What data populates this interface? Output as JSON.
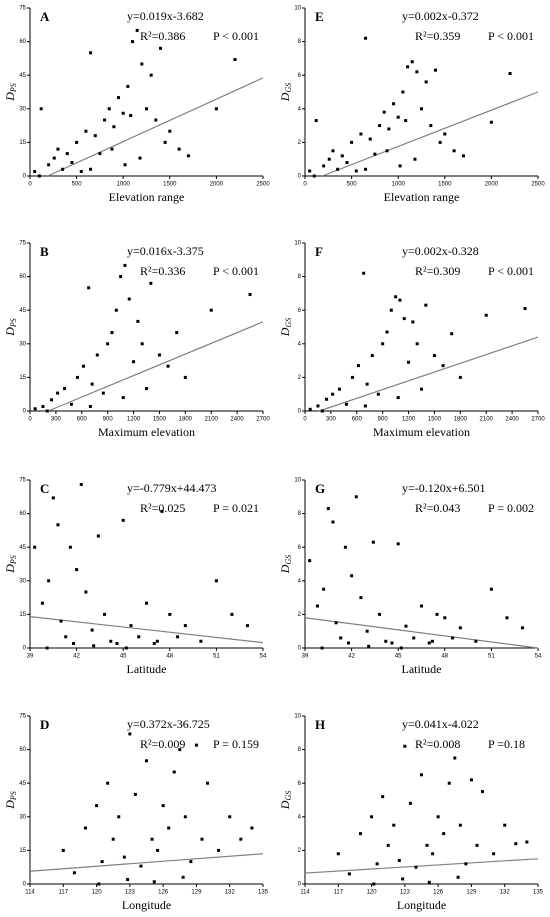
{
  "chart_data": [
    {
      "type": "scatter",
      "panel_label": "A",
      "equation": "y=0.019x-3.682",
      "r_squared": "R²=0.386",
      "p_value": "P < 0.001",
      "xlabel": "Elevation range",
      "ylabel": "D",
      "ylabel_sub": "PS",
      "color": "#000000",
      "trend_color": "#808080",
      "xlim": [
        0,
        2500
      ],
      "ylim": [
        0,
        75
      ],
      "xticks": [
        0,
        500,
        1000,
        1500,
        2000,
        2500
      ],
      "yticks": [
        0,
        15,
        30,
        45,
        60,
        75
      ],
      "x": [
        50,
        120,
        200,
        260,
        300,
        350,
        400,
        450,
        500,
        550,
        600,
        650,
        700,
        750,
        800,
        850,
        900,
        950,
        1000,
        1050,
        1100,
        1150,
        1200,
        1250,
        1300,
        1350,
        1400,
        1450,
        1500,
        1600,
        1700,
        2000,
        2200,
        100,
        650,
        880,
        1020,
        1080,
        1180
      ],
      "y": [
        2,
        30,
        5,
        8,
        12,
        3,
        10,
        6,
        15,
        2,
        20,
        55,
        18,
        10,
        25,
        30,
        22,
        35,
        28,
        40,
        60,
        65,
        50,
        30,
        45,
        25,
        57,
        15,
        20,
        12,
        9,
        30,
        52,
        0,
        3,
        12,
        5,
        27,
        8
      ],
      "trend": {
        "x": [
          190,
          2500
        ],
        "y": [
          0,
          43.8
        ]
      }
    },
    {
      "type": "scatter",
      "panel_label": "B",
      "equation": "y=0.016x-3.375",
      "r_squared": "R²=0.336",
      "p_value": "P < 0.001",
      "xlabel": "Maximum elevation",
      "ylabel": "D",
      "ylabel_sub": "PS",
      "color": "#000000",
      "trend_color": "#808080",
      "xlim": [
        0,
        2700
      ],
      "ylim": [
        0,
        75
      ],
      "xticks": [
        0,
        300,
        600,
        900,
        1200,
        1500,
        1800,
        2100,
        2400,
        2700
      ],
      "yticks": [
        0,
        15,
        30,
        45,
        60,
        75
      ],
      "x": [
        60,
        150,
        250,
        320,
        400,
        480,
        550,
        620,
        680,
        720,
        780,
        850,
        900,
        950,
        1000,
        1050,
        1100,
        1150,
        1200,
        1250,
        1300,
        1400,
        1500,
        1600,
        1700,
        1800,
        2100,
        2550,
        200,
        700,
        1080,
        1350
      ],
      "y": [
        1,
        2,
        5,
        8,
        10,
        3,
        15,
        20,
        55,
        12,
        25,
        8,
        30,
        35,
        45,
        60,
        65,
        50,
        22,
        40,
        30,
        57,
        25,
        20,
        35,
        15,
        45,
        52,
        0,
        2,
        6,
        10
      ],
      "trend": {
        "x": [
          211,
          2700
        ],
        "y": [
          0,
          39.8
        ]
      }
    },
    {
      "type": "scatter",
      "panel_label": "C",
      "equation": "y=-0.779x+44.473",
      "r_squared": "R²=0.025",
      "p_value": "P = 0.021",
      "xlabel": "Latitude",
      "ylabel": "D",
      "ylabel_sub": "PS",
      "color": "#000000",
      "trend_color": "#808080",
      "xlim": [
        39,
        54
      ],
      "ylim": [
        0,
        75
      ],
      "xticks": [
        39,
        42,
        45,
        48,
        51,
        54
      ],
      "yticks": [
        0,
        15,
        30,
        45,
        60,
        75
      ],
      "x": [
        39.3,
        39.8,
        40.2,
        40.5,
        40.8,
        41,
        41.3,
        41.6,
        42,
        42.3,
        42.6,
        43,
        43.4,
        43.8,
        44.2,
        44.6,
        45,
        45.5,
        46,
        46.5,
        47,
        47.5,
        48,
        48.5,
        49,
        50,
        51,
        52,
        53,
        40.1,
        41.8,
        43.1,
        45.2,
        47.2
      ],
      "y": [
        45,
        20,
        30,
        67,
        55,
        12,
        5,
        45,
        35,
        73,
        25,
        8,
        50,
        15,
        3,
        2,
        57,
        10,
        5,
        20,
        2,
        61,
        15,
        5,
        10,
        3,
        30,
        15,
        10,
        0,
        2,
        1,
        0,
        3
      ],
      "trend": {
        "x": [
          39,
          54
        ],
        "y": [
          14,
          2.4
        ]
      }
    },
    {
      "type": "scatter",
      "panel_label": "D",
      "equation": "y=0.372x-36.725",
      "r_squared": "R²=0.009",
      "p_value": "P = 0.159",
      "xlabel": "Longitude",
      "ylabel": "D",
      "ylabel_sub": "PS",
      "color": "#000000",
      "trend_color": "#808080",
      "xlim": [
        114,
        135
      ],
      "ylim": [
        0,
        75
      ],
      "xticks": [
        114,
        117,
        120,
        123,
        126,
        129,
        132,
        135
      ],
      "yticks": [
        0,
        15,
        30,
        45,
        60,
        75
      ],
      "x": [
        117,
        118,
        119,
        120,
        120.5,
        121,
        121.5,
        122,
        122.5,
        123,
        123.5,
        124,
        124.5,
        125,
        125.5,
        126,
        126.5,
        127,
        127.5,
        128,
        128.5,
        129,
        129.5,
        130,
        131,
        132,
        133,
        134,
        120.2,
        122.8,
        125.2,
        127.8
      ],
      "y": [
        15,
        5,
        25,
        35,
        10,
        45,
        20,
        30,
        12,
        67,
        40,
        8,
        55,
        20,
        15,
        35,
        25,
        50,
        60,
        30,
        10,
        62,
        20,
        45,
        15,
        30,
        20,
        25,
        0,
        2,
        1,
        3
      ],
      "trend": {
        "x": [
          114,
          135
        ],
        "y": [
          5.7,
          13.5
        ]
      }
    },
    {
      "type": "scatter",
      "panel_label": "E",
      "equation": "y=0.002x-0.372",
      "r_squared": "R²=0.359",
      "p_value": "P < 0.001",
      "xlabel": "Elevation range",
      "ylabel": "D",
      "ylabel_sub": "GS",
      "color": "#000000",
      "trend_color": "#808080",
      "xlim": [
        0,
        2500
      ],
      "ylim": [
        0,
        10
      ],
      "xticks": [
        0,
        500,
        1000,
        1500,
        2000,
        2500
      ],
      "yticks": [
        0,
        2,
        4,
        6,
        8,
        10
      ],
      "x": [
        50,
        120,
        200,
        260,
        300,
        350,
        400,
        450,
        500,
        550,
        600,
        650,
        700,
        750,
        800,
        850,
        900,
        950,
        1000,
        1050,
        1100,
        1150,
        1200,
        1250,
        1300,
        1350,
        1400,
        1450,
        1500,
        1600,
        1700,
        2000,
        2200,
        100,
        650,
        880,
        1020,
        1080,
        1180
      ],
      "y": [
        0.3,
        3.3,
        0.6,
        1,
        1.5,
        0.4,
        1.2,
        0.8,
        2,
        0.3,
        2.5,
        8.2,
        2.2,
        1.3,
        3,
        3.8,
        2.8,
        4.3,
        3.5,
        5,
        6.5,
        6.8,
        6.2,
        4,
        5.6,
        3,
        6.3,
        2,
        2.5,
        1.5,
        1.2,
        3.2,
        6.1,
        0,
        0.4,
        1.5,
        0.6,
        3.3,
        1
      ],
      "trend": {
        "x": [
          186,
          2500
        ],
        "y": [
          0,
          5
        ]
      }
    },
    {
      "type": "scatter",
      "panel_label": "F",
      "equation": "y=0.002x-0.328",
      "r_squared": "R²=0.309",
      "p_value": "P < 0.001",
      "xlabel": "Maximum elevation",
      "ylabel": "D",
      "ylabel_sub": "GS",
      "color": "#000000",
      "trend_color": "#808080",
      "xlim": [
        0,
        2700
      ],
      "ylim": [
        0,
        10
      ],
      "xticks": [
        0,
        300,
        600,
        900,
        1200,
        1500,
        1800,
        2100,
        2400,
        2700
      ],
      "yticks": [
        0,
        2,
        4,
        6,
        8,
        10
      ],
      "x": [
        60,
        150,
        250,
        320,
        400,
        480,
        550,
        620,
        680,
        720,
        780,
        850,
        900,
        950,
        1000,
        1050,
        1100,
        1150,
        1200,
        1250,
        1300,
        1400,
        1500,
        1600,
        1700,
        1800,
        2100,
        2550,
        200,
        700,
        1080,
        1350
      ],
      "y": [
        0.1,
        0.3,
        0.7,
        1,
        1.3,
        0.4,
        2,
        2.7,
        8.2,
        1.6,
        3.3,
        1,
        4,
        4.7,
        6,
        6.8,
        6.6,
        5.5,
        2.9,
        5.3,
        4,
        6.3,
        3.3,
        2.7,
        4.6,
        2,
        5.7,
        6.1,
        0,
        0.3,
        0.8,
        1.3
      ],
      "trend": {
        "x": [
          164,
          2700
        ],
        "y": [
          0,
          4.4
        ]
      }
    },
    {
      "type": "scatter",
      "panel_label": "G",
      "equation": "y=-0.120x+6.501",
      "r_squared": "R²=0.043",
      "p_value": "P = 0.002",
      "xlabel": "Latitude",
      "ylabel": "D",
      "ylabel_sub": "GS",
      "color": "#000000",
      "trend_color": "#808080",
      "xlim": [
        39,
        54
      ],
      "ylim": [
        0,
        10
      ],
      "xticks": [
        39,
        42,
        45,
        48,
        51,
        54
      ],
      "yticks": [
        0,
        2,
        4,
        6,
        8,
        10
      ],
      "x": [
        39.3,
        39.8,
        40.2,
        40.5,
        40.8,
        41,
        41.3,
        41.6,
        42,
        42.3,
        42.6,
        43,
        43.4,
        43.8,
        44.2,
        44.6,
        45,
        45.5,
        46,
        46.5,
        47,
        47.5,
        48,
        48.5,
        49,
        50,
        51,
        52,
        53,
        40.1,
        41.8,
        43.1,
        45.2,
        47.2
      ],
      "y": [
        5.2,
        2.5,
        3.5,
        8.3,
        7.5,
        1.5,
        0.6,
        6,
        4.3,
        9,
        3,
        1,
        6.3,
        2,
        0.4,
        0.3,
        6.2,
        1.3,
        0.6,
        2.5,
        0.3,
        2,
        1.8,
        0.6,
        1.2,
        0.4,
        3.5,
        1.8,
        1.2,
        0,
        0.3,
        0.1,
        0,
        0.4
      ],
      "trend": {
        "x": [
          39,
          54
        ],
        "y": [
          1.8,
          0
        ]
      }
    },
    {
      "type": "scatter",
      "panel_label": "H",
      "equation": "y=0.041x-4.022",
      "r_squared": "R²=0.008",
      "p_value": "P =0.18",
      "xlabel": "Longitude",
      "ylabel": "D",
      "ylabel_sub": "GS",
      "color": "#000000",
      "trend_color": "#808080",
      "xlim": [
        114,
        135
      ],
      "ylim": [
        0,
        10
      ],
      "xticks": [
        114,
        117,
        120,
        123,
        126,
        129,
        132,
        135
      ],
      "yticks": [
        0,
        2,
        4,
        6,
        8,
        10
      ],
      "x": [
        117,
        118,
        119,
        120,
        120.5,
        121,
        121.5,
        122,
        122.5,
        123,
        123.5,
        124,
        124.5,
        125,
        125.5,
        126,
        126.5,
        127,
        127.5,
        128,
        128.5,
        129,
        129.5,
        130,
        131,
        132,
        133,
        134,
        120.2,
        122.8,
        125.2,
        127.8
      ],
      "y": [
        1.8,
        0.6,
        3,
        4,
        1.2,
        5.2,
        2.3,
        3.5,
        1.4,
        8.2,
        4.8,
        1,
        6.5,
        2.3,
        1.8,
        4,
        3,
        6,
        7.5,
        3.5,
        1.2,
        6.2,
        2.3,
        5.5,
        1.8,
        3.5,
        2.4,
        2.5,
        0,
        0.3,
        0.1,
        0.4
      ],
      "trend": {
        "x": [
          114,
          135
        ],
        "y": [
          0.65,
          1.5
        ]
      }
    }
  ]
}
